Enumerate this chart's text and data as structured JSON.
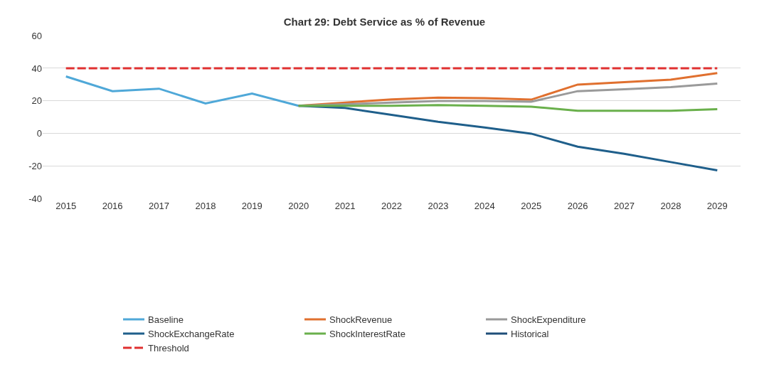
{
  "chart_data": {
    "type": "line",
    "title": "Chart 29: Debt Service as % of Revenue",
    "categories": [
      "2015",
      "2016",
      "2017",
      "2018",
      "2019",
      "2020",
      "2021",
      "2022",
      "2023",
      "2024",
      "2025",
      "2026",
      "2027",
      "2028",
      "2029"
    ],
    "series": [
      {
        "name": "Baseline",
        "color": "#4fa8d8",
        "values": [
          35,
          26,
          27.5,
          18.5,
          24.5,
          17,
          null,
          null,
          null,
          null,
          null,
          null,
          null,
          null,
          null
        ]
      },
      {
        "name": "ShockRevenue",
        "color": "#e0702f",
        "values": [
          null,
          null,
          null,
          null,
          null,
          17,
          19,
          21,
          22,
          21.7,
          20.8,
          30,
          31.5,
          33,
          37
        ]
      },
      {
        "name": "ShockExpenditure",
        "color": "#9a9a9a",
        "values": [
          null,
          null,
          null,
          null,
          null,
          17,
          18,
          19,
          20,
          20,
          19.5,
          26,
          27.2,
          28.5,
          30.6
        ]
      },
      {
        "name": "ShockExchangeRate",
        "color": "#1f5f8b",
        "values": [
          null,
          null,
          null,
          null,
          null,
          17,
          15.7,
          11.5,
          7.2,
          3.8,
          0,
          -8,
          -12.3,
          -17.4,
          -22.5
        ]
      },
      {
        "name": "ShockInterestRate",
        "color": "#6ab04c",
        "values": [
          null,
          null,
          null,
          null,
          null,
          17,
          17,
          17,
          17.5,
          17,
          16.5,
          14,
          14,
          14,
          15
        ]
      },
      {
        "name": "Historical",
        "color": "#1f4e79",
        "values": [
          null,
          null,
          null,
          null,
          null,
          null,
          null,
          null,
          null,
          null,
          null,
          null,
          null,
          null,
          null
        ]
      },
      {
        "name": "Threshold",
        "color": "#e03030",
        "line_style": "dashed",
        "values": [
          40,
          40,
          40,
          40,
          40,
          40,
          40,
          40,
          40,
          40,
          40,
          40,
          40,
          40,
          40
        ]
      }
    ],
    "ylim": [
      -40,
      60
    ],
    "yticks": [
      -40,
      -20,
      0,
      20,
      40,
      60
    ],
    "grid": "y",
    "legend": "bottom",
    "line_style": "solid"
  }
}
